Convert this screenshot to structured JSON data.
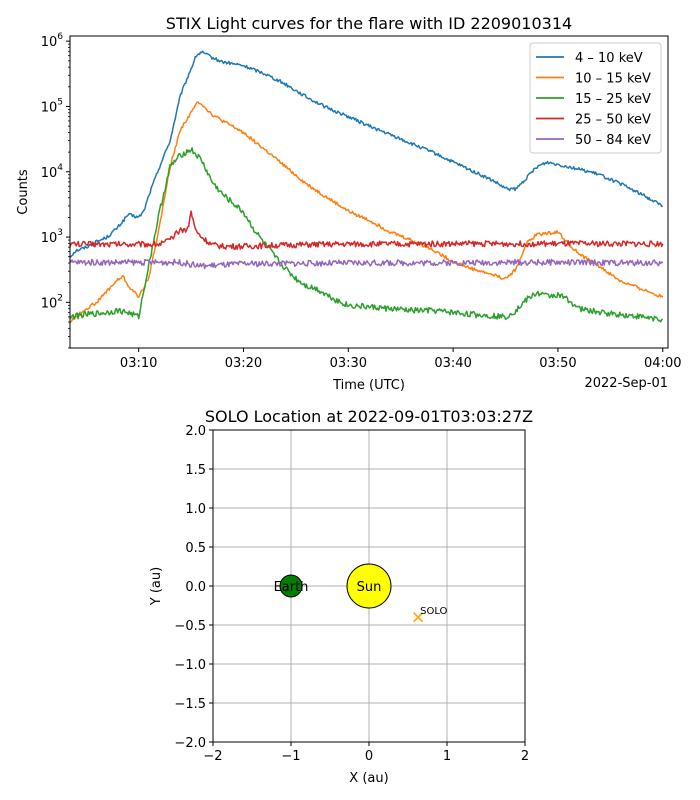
{
  "chart_data": [
    {
      "type": "line",
      "title": "STIX Light curves for the flare with ID 2209010314",
      "xlabel": "Time (UTC)",
      "ylabel": "Counts",
      "x_offset_label": "2022-Sep-01",
      "yscale": "log",
      "ylim": [
        20,
        1200000
      ],
      "xlim": [
        "03:03:27",
        "04:00:30"
      ],
      "x_ticks": [
        "03:10",
        "03:20",
        "03:30",
        "03:40",
        "03:50",
        "04:00"
      ],
      "y_ticks": [
        "10^2",
        "10^3",
        "10^4",
        "10^5",
        "10^6"
      ],
      "legend_position": "upper right",
      "series": [
        {
          "name": "4 – 10 keV",
          "color": "#1f77b4",
          "points": [
            [
              "03:03:27",
              500
            ],
            [
              "03:04",
              620
            ],
            [
              "03:05",
              700
            ],
            [
              "03:06",
              850
            ],
            [
              "03:07",
              1000
            ],
            [
              "03:08",
              1400
            ],
            [
              "03:09",
              2200
            ],
            [
              "03:10",
              2000
            ],
            [
              "03:10:30",
              2500
            ],
            [
              "03:11",
              4500
            ],
            [
              "03:12",
              12000
            ],
            [
              "03:13",
              30000
            ],
            [
              "03:14",
              150000
            ],
            [
              "03:15",
              380000
            ],
            [
              "03:15:30",
              600000
            ],
            [
              "03:16",
              680000
            ],
            [
              "03:17",
              560000
            ],
            [
              "03:18",
              480000
            ],
            [
              "03:19",
              450000
            ],
            [
              "03:20",
              420000
            ],
            [
              "03:22",
              320000
            ],
            [
              "03:24",
              220000
            ],
            [
              "03:26",
              140000
            ],
            [
              "03:28",
              95000
            ],
            [
              "03:30",
              70000
            ],
            [
              "03:32",
              50000
            ],
            [
              "03:34",
              37000
            ],
            [
              "03:36",
              27000
            ],
            [
              "03:38",
              20000
            ],
            [
              "03:40",
              14000
            ],
            [
              "03:42",
              10000
            ],
            [
              "03:44",
              7000
            ],
            [
              "03:45",
              5500
            ],
            [
              "03:46",
              5400
            ],
            [
              "03:47",
              8000
            ],
            [
              "03:48",
              12000
            ],
            [
              "03:49",
              14000
            ],
            [
              "03:50",
              13000
            ],
            [
              "03:52",
              11000
            ],
            [
              "03:54",
              9000
            ],
            [
              "03:56",
              6500
            ],
            [
              "03:58",
              4500
            ],
            [
              "04:00",
              3000
            ]
          ]
        },
        {
          "name": "10 – 15 keV",
          "color": "#ff7f0e",
          "points": [
            [
              "03:03:27",
              50
            ],
            [
              "03:04",
              60
            ],
            [
              "03:05",
              80
            ],
            [
              "03:06",
              100
            ],
            [
              "03:07",
              150
            ],
            [
              "03:08",
              220
            ],
            [
              "03:08:30",
              250
            ],
            [
              "03:09",
              180
            ],
            [
              "03:10",
              120
            ],
            [
              "03:11",
              250
            ],
            [
              "03:12",
              1500
            ],
            [
              "03:13",
              12000
            ],
            [
              "03:14",
              45000
            ],
            [
              "03:15",
              80000
            ],
            [
              "03:15:40",
              120000
            ],
            [
              "03:16",
              110000
            ],
            [
              "03:17",
              75000
            ],
            [
              "03:18",
              60000
            ],
            [
              "03:20",
              40000
            ],
            [
              "03:22",
              22000
            ],
            [
              "03:24",
              12000
            ],
            [
              "03:26",
              6500
            ],
            [
              "03:28",
              4000
            ],
            [
              "03:30",
              2500
            ],
            [
              "03:32",
              1800
            ],
            [
              "03:34",
              1200
            ],
            [
              "03:36",
              900
            ],
            [
              "03:38",
              650
            ],
            [
              "03:40",
              420
            ],
            [
              "03:42",
              320
            ],
            [
              "03:44",
              260
            ],
            [
              "03:45",
              230
            ],
            [
              "03:46",
              320
            ],
            [
              "03:47",
              800
            ],
            [
              "03:48",
              1100
            ],
            [
              "03:49",
              1150
            ],
            [
              "03:50",
              1200
            ],
            [
              "03:51",
              800
            ],
            [
              "03:52",
              550
            ],
            [
              "03:54",
              350
            ],
            [
              "03:56",
              210
            ],
            [
              "03:58",
              160
            ],
            [
              "04:00",
              120
            ]
          ]
        },
        {
          "name": "15 – 25 keV",
          "color": "#2ca02c",
          "points": [
            [
              "03:03:27",
              60
            ],
            [
              "03:05",
              65
            ],
            [
              "03:07",
              70
            ],
            [
              "03:08",
              75
            ],
            [
              "03:09",
              70
            ],
            [
              "03:10",
              60
            ],
            [
              "03:11",
              400
            ],
            [
              "03:12",
              2500
            ],
            [
              "03:13",
              12000
            ],
            [
              "03:14",
              18000
            ],
            [
              "03:15",
              22000
            ],
            [
              "03:16",
              15000
            ],
            [
              "03:17",
              7000
            ],
            [
              "03:18",
              4500
            ],
            [
              "03:19",
              3300
            ],
            [
              "03:20",
              2400
            ],
            [
              "03:21",
              1300
            ],
            [
              "03:22",
              800
            ],
            [
              "03:23",
              500
            ],
            [
              "03:24",
              330
            ],
            [
              "03:25",
              230
            ],
            [
              "03:26",
              180
            ],
            [
              "03:27",
              160
            ],
            [
              "03:28",
              130
            ],
            [
              "03:29",
              105
            ],
            [
              "03:30",
              90
            ],
            [
              "03:32",
              85
            ],
            [
              "03:34",
              80
            ],
            [
              "03:36",
              75
            ],
            [
              "03:38",
              75
            ],
            [
              "03:40",
              70
            ],
            [
              "03:42",
              65
            ],
            [
              "03:44",
              62
            ],
            [
              "03:45",
              60
            ],
            [
              "03:46",
              75
            ],
            [
              "03:47",
              110
            ],
            [
              "03:48",
              140
            ],
            [
              "03:49",
              125
            ],
            [
              "03:50",
              130
            ],
            [
              "03:51",
              110
            ],
            [
              "03:52",
              80
            ],
            [
              "03:54",
              70
            ],
            [
              "03:56",
              65
            ],
            [
              "03:58",
              60
            ],
            [
              "04:00",
              55
            ]
          ]
        },
        {
          "name": "25 – 50 keV",
          "color": "#d62728",
          "points": [
            [
              "03:03:27",
              780
            ],
            [
              "03:08",
              780
            ],
            [
              "03:12",
              780
            ],
            [
              "03:13",
              900
            ],
            [
              "03:14",
              1300
            ],
            [
              "03:14:40",
              1300
            ],
            [
              "03:15",
              2400
            ],
            [
              "03:15:30",
              1200
            ],
            [
              "03:16",
              1000
            ],
            [
              "03:17",
              760
            ],
            [
              "03:18",
              720
            ],
            [
              "03:20",
              720
            ],
            [
              "03:25",
              760
            ],
            [
              "03:30",
              780
            ],
            [
              "03:35",
              780
            ],
            [
              "03:40",
              790
            ],
            [
              "03:45",
              790
            ],
            [
              "03:50",
              790
            ],
            [
              "03:55",
              790
            ],
            [
              "04:00",
              790
            ]
          ]
        },
        {
          "name": "50 – 84 keV",
          "color": "#9467bd",
          "points": [
            [
              "03:03:27",
              410
            ],
            [
              "03:10",
              410
            ],
            [
              "03:14",
              410
            ],
            [
              "03:15",
              380
            ],
            [
              "03:16",
              360
            ],
            [
              "03:20",
              390
            ],
            [
              "03:25",
              395
            ],
            [
              "03:30",
              400
            ],
            [
              "03:40",
              405
            ],
            [
              "03:50",
              410
            ],
            [
              "04:00",
              400
            ]
          ]
        }
      ]
    },
    {
      "type": "scatter",
      "title": "SOLO Location at 2022-09-01T03:03:27Z",
      "xlabel": "X (au)",
      "ylabel": "Y (au)",
      "xlim": [
        -2,
        2
      ],
      "ylim": [
        -2,
        2
      ],
      "x_ticks": [
        "−2",
        "−1",
        "0",
        "1",
        "2"
      ],
      "y_ticks": [
        "2.0",
        "1.5",
        "1.0",
        "0.5",
        "0.0",
        "−0.5",
        "−1.0",
        "−1.5",
        "−2.0"
      ],
      "grid": true,
      "points": [
        {
          "label": "Sun",
          "x": 0.0,
          "y": 0.0,
          "color": "#ffff00",
          "marker": "large-circle"
        },
        {
          "label": "Earth",
          "x": -1.0,
          "y": 0.0,
          "color": "#008000",
          "marker": "circle"
        },
        {
          "label": "SOLO",
          "x": 0.63,
          "y": -0.4,
          "color": "#ffa500",
          "marker": "x"
        }
      ]
    }
  ]
}
